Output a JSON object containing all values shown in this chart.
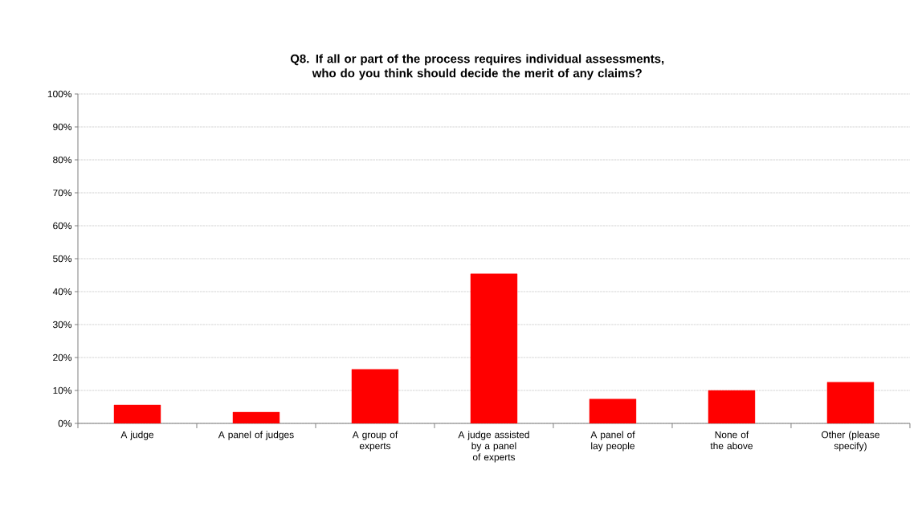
{
  "chart_data": {
    "type": "bar",
    "title": "Q8.  If all or part of the process requires individual assessments, who do you think should decide the merit of any claims?",
    "categories": [
      "A judge",
      "A panel of judges",
      "A group of experts",
      "A judge assisted by a panel of experts",
      "A panel of lay people",
      "None of the above",
      "Other (please specify)"
    ],
    "values": [
      5.6,
      3.4,
      16.4,
      45.4,
      7.4,
      10.0,
      12.5
    ],
    "color": "#ff0000",
    "ylim": [
      0,
      100
    ],
    "yticks": [
      {
        "value": 0,
        "label": "0%"
      },
      {
        "value": 10,
        "label": "10%"
      },
      {
        "value": 20,
        "label": "20%"
      },
      {
        "value": 30,
        "label": "30%"
      },
      {
        "value": 40,
        "label": "40%"
      },
      {
        "value": 50,
        "label": "50%"
      },
      {
        "value": 60,
        "label": "60%"
      },
      {
        "value": 70,
        "label": "70%"
      },
      {
        "value": 80,
        "label": "80%"
      },
      {
        "value": 90,
        "label": "90%"
      },
      {
        "value": 100,
        "label": "100%"
      }
    ],
    "grid": "y"
  }
}
